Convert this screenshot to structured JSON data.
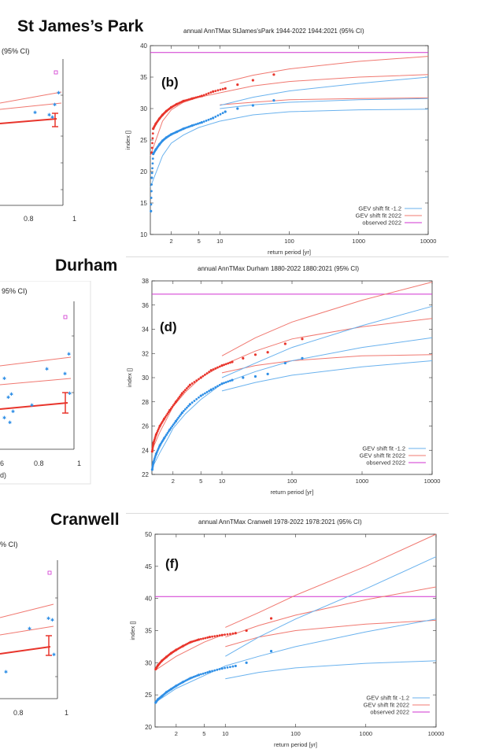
{
  "colors": {
    "red": "#e8352c",
    "blue": "#2f8fe6",
    "magenta": "#d033d0",
    "fit_red": "#f07870",
    "fit_blue": "#6ab2ee"
  },
  "panels": [
    {
      "station": "St James’s Park",
      "title": "annual  AnnTMax StJames'sPark 1944-2022 1944:2021 (95% CI)",
      "letter": "(b)",
      "ylabel": "index []",
      "xlabel": "return period [yr]",
      "partial_title": "(95% CI)",
      "partial_xlabel": "",
      "partial_ticks": [
        {
          "label": "0.8"
        },
        {
          "label": "1"
        }
      ]
    },
    {
      "station": "Durham",
      "title": "annual  AnnTMax Durham 1880-2022 1880:2021 (95% CI)",
      "letter": "(d)",
      "ylabel": "index []",
      "xlabel": "return period [yr]",
      "partial_title": "95% CI)",
      "partial_xlabel": "d)",
      "partial_ticks": [
        {
          "label": "6"
        },
        {
          "label": "0.8"
        },
        {
          "label": "1"
        }
      ]
    },
    {
      "station": "Cranwell",
      "title": "annual  AnnTMax Cranwell 1978-2022 1978:2021 (95% CI)",
      "letter": "(f)",
      "ylabel": "index []",
      "xlabel": "return period [yr]",
      "partial_title": "% CI)",
      "partial_xlabel": "",
      "partial_ticks": [
        {
          "label": "0.8"
        },
        {
          "label": "1"
        }
      ]
    }
  ],
  "chart_data": [
    {
      "type": "scatter",
      "title": "annual  AnnTMax StJames'sPark 1944-2022 1944:2021 (95% CI)",
      "xscale": "log",
      "xlim": [
        1,
        10000
      ],
      "ylim": [
        10,
        40
      ],
      "xticks": [
        2,
        5,
        10,
        100,
        1000,
        10000
      ],
      "yticks": [
        10,
        15,
        20,
        25,
        30,
        35,
        40
      ],
      "xlabel": "return period [yr]",
      "ylabel": "index []",
      "legend": [
        "GEV shift fit -1.2",
        "GEV shift fit 2022",
        "observed 2022"
      ],
      "legend_position": "bottom-right",
      "observed_2022": 38.9,
      "red_fit": {
        "x": [
          1,
          1.5,
          2,
          3,
          5,
          10
        ],
        "y": [
          22.5,
          28.0,
          29.8,
          31.0,
          31.8,
          32.5
        ]
      },
      "red_fit_upper": {
        "x": [
          10,
          30,
          100,
          1000,
          10000
        ],
        "y": [
          34.0,
          35.3,
          36.3,
          37.5,
          38.3
        ]
      },
      "red_fit_mid": {
        "x": [
          10,
          30,
          100,
          1000,
          10000
        ],
        "y": [
          32.5,
          33.6,
          34.3,
          35.0,
          35.4
        ]
      },
      "red_fit_lower": {
        "x": [
          10,
          30,
          100,
          1000,
          10000
        ],
        "y": [
          30.6,
          31.0,
          31.4,
          31.6,
          31.7
        ]
      },
      "blue_fit": {
        "x": [
          1,
          1.5,
          2,
          3,
          5,
          10
        ],
        "y": [
          17.5,
          22.5,
          24.5,
          25.8,
          27.0,
          28.0
        ]
      },
      "blue_fit_upper": {
        "x": [
          10,
          30,
          100,
          1000,
          10000
        ],
        "y": [
          30.5,
          31.8,
          32.8,
          34.0,
          35.0
        ]
      },
      "blue_fit_mid": {
        "x": [
          10,
          30,
          100,
          1000,
          10000
        ],
        "y": [
          30.0,
          30.6,
          31.0,
          31.4,
          31.6
        ]
      },
      "blue_fit_lower": {
        "x": [
          10,
          30,
          100,
          1000,
          10000
        ],
        "y": [
          28.0,
          29.0,
          29.5,
          29.8,
          29.9
        ]
      },
      "red_points": {
        "x": [
          1.05,
          1.1,
          1.2,
          1.35,
          1.5,
          1.7,
          2.0,
          2.4,
          3.0,
          4.0,
          5.5,
          8.0,
          12,
          18,
          30,
          60
        ],
        "y": [
          23.0,
          26.8,
          27.6,
          28.4,
          29.0,
          29.6,
          30.2,
          30.7,
          31.2,
          31.6,
          32.0,
          32.7,
          33.2,
          33.8,
          34.5,
          35.4
        ]
      },
      "blue_points": {
        "x": [
          1.02,
          1.05,
          1.1,
          1.2,
          1.35,
          1.5,
          1.7,
          2.0,
          2.4,
          3.0,
          4.0,
          5.5,
          8.0,
          12,
          18,
          30,
          60
        ],
        "y": [
          13.7,
          19.0,
          22.8,
          23.5,
          24.3,
          24.9,
          25.4,
          25.9,
          26.3,
          26.8,
          27.3,
          27.8,
          28.5,
          29.5,
          30.0,
          30.5,
          31.3
        ]
      }
    },
    {
      "type": "scatter",
      "title": "annual  AnnTMax Durham 1880-2022 1880:2021 (95% CI)",
      "xscale": "log",
      "xlim": [
        1,
        10000
      ],
      "ylim": [
        22,
        38
      ],
      "xticks": [
        2,
        5,
        10,
        100,
        1000,
        10000
      ],
      "yticks": [
        22,
        24,
        26,
        28,
        30,
        32,
        34,
        36,
        38
      ],
      "xlabel": "return period [yr]",
      "ylabel": "index []",
      "legend": [
        "GEV shift fit -1.2",
        "GEV shift fit 2022",
        "observed 2022"
      ],
      "legend_position": "bottom-right",
      "observed_2022": 36.9,
      "red_fit": {
        "x": [
          1,
          1.3,
          1.7,
          2,
          3,
          5,
          10
        ],
        "y": [
          24.0,
          25.5,
          26.8,
          27.6,
          28.8,
          30.0,
          31.0
        ]
      },
      "red_fit_upper": {
        "x": [
          10,
          30,
          100,
          1000,
          10000
        ],
        "y": [
          31.8,
          33.3,
          34.6,
          36.4,
          37.9
        ]
      },
      "red_fit_mid": {
        "x": [
          10,
          30,
          100,
          1000,
          10000
        ],
        "y": [
          31.0,
          32.2,
          33.2,
          34.2,
          34.9
        ]
      },
      "red_fit_lower": {
        "x": [
          10,
          30,
          100,
          1000,
          10000
        ],
        "y": [
          30.4,
          31.0,
          31.4,
          31.8,
          31.9
        ]
      },
      "blue_fit": {
        "x": [
          1,
          1.3,
          1.7,
          2,
          3,
          5,
          10
        ],
        "y": [
          22.5,
          23.8,
          25.0,
          25.8,
          27.0,
          28.2,
          29.5
        ]
      },
      "blue_fit_upper": {
        "x": [
          10,
          30,
          100,
          1000,
          10000
        ],
        "y": [
          30.0,
          31.2,
          32.5,
          34.3,
          35.9
        ]
      },
      "blue_fit_mid": {
        "x": [
          10,
          30,
          100,
          1000,
          10000
        ],
        "y": [
          29.5,
          30.5,
          31.4,
          32.5,
          33.3
        ]
      },
      "blue_fit_lower": {
        "x": [
          10,
          30,
          100,
          1000,
          10000
        ],
        "y": [
          28.9,
          29.6,
          30.2,
          30.9,
          31.4
        ]
      },
      "red_points": {
        "x": [
          1.01,
          1.05,
          1.15,
          1.3,
          1.5,
          1.8,
          2.2,
          2.7,
          3.5,
          5,
          7,
          10,
          14,
          20,
          30,
          45,
          80,
          140
        ],
        "y": [
          23.9,
          24.6,
          25.3,
          26.0,
          26.6,
          27.3,
          28.0,
          28.7,
          29.4,
          30.0,
          30.6,
          31.0,
          31.3,
          31.6,
          31.9,
          32.1,
          32.8,
          33.2
        ]
      },
      "blue_points": {
        "x": [
          1.01,
          1.05,
          1.15,
          1.3,
          1.5,
          1.8,
          2.2,
          2.7,
          3.5,
          5,
          7,
          10,
          14,
          20,
          30,
          45,
          80,
          140
        ],
        "y": [
          22.4,
          23.0,
          23.7,
          24.4,
          25.0,
          25.7,
          26.4,
          27.1,
          27.8,
          28.5,
          29.0,
          29.5,
          29.8,
          30.0,
          30.1,
          30.3,
          31.2,
          31.6
        ]
      }
    },
    {
      "type": "scatter",
      "title": "annual  AnnTMax Cranwell 1978-2022 1978:2021 (95% CI)",
      "xscale": "log",
      "xlim": [
        1,
        10000
      ],
      "ylim": [
        20,
        50
      ],
      "xticks": [
        2,
        5,
        10,
        100,
        1000,
        10000
      ],
      "yticks": [
        20,
        25,
        30,
        35,
        40,
        45,
        50
      ],
      "xlabel": "return period [yr]",
      "ylabel": "index []",
      "legend": [
        "GEV shift fit -1.2",
        "GEV shift fit 2022",
        "observed 2022"
      ],
      "legend_position": "bottom-right",
      "observed_2022": 40.3,
      "red_fit": {
        "x": [
          1,
          2,
          5,
          10
        ],
        "y": [
          28.8,
          31.0,
          33.2,
          34.5
        ]
      },
      "red_fit_upper": {
        "x": [
          10,
          30,
          100,
          1000,
          10000
        ],
        "y": [
          35.5,
          37.8,
          40.5,
          45.0,
          50.0
        ]
      },
      "red_fit_mid": {
        "x": [
          10,
          30,
          100,
          1000,
          10000
        ],
        "y": [
          34.0,
          35.8,
          37.4,
          39.8,
          41.8
        ]
      },
      "red_fit_lower": {
        "x": [
          10,
          30,
          100,
          1000,
          10000
        ],
        "y": [
          32.5,
          34.0,
          35.0,
          36.0,
          36.6
        ]
      },
      "blue_fit": {
        "x": [
          1,
          2,
          5,
          10
        ],
        "y": [
          23.8,
          26.0,
          28.0,
          29.5
        ]
      },
      "blue_fit_upper": {
        "x": [
          10,
          30,
          100,
          1000,
          10000
        ],
        "y": [
          31.0,
          34.0,
          36.8,
          41.5,
          46.5
        ]
      },
      "blue_fit_mid": {
        "x": [
          10,
          30,
          100,
          1000,
          10000
        ],
        "y": [
          29.5,
          31.0,
          32.5,
          34.8,
          36.8
        ]
      },
      "blue_fit_lower": {
        "x": [
          10,
          30,
          100,
          1000,
          10000
        ],
        "y": [
          27.5,
          28.5,
          29.2,
          29.9,
          30.3
        ]
      },
      "red_points": {
        "x": [
          1.02,
          1.1,
          1.25,
          1.45,
          1.7,
          2.0,
          2.5,
          3.2,
          4.2,
          6,
          9,
          14,
          20,
          45
        ],
        "y": [
          29.0,
          29.6,
          30.3,
          30.9,
          31.5,
          32.0,
          32.6,
          33.2,
          33.6,
          34.0,
          34.3,
          34.6,
          35.0,
          36.9
        ]
      },
      "blue_points": {
        "x": [
          1.02,
          1.1,
          1.25,
          1.45,
          1.7,
          2.0,
          2.5,
          3.2,
          4.2,
          6,
          9,
          14,
          20,
          45
        ],
        "y": [
          23.8,
          24.3,
          24.8,
          25.4,
          25.9,
          26.4,
          27.0,
          27.6,
          28.1,
          28.6,
          29.1,
          29.5,
          30.0,
          31.8
        ]
      }
    }
  ]
}
